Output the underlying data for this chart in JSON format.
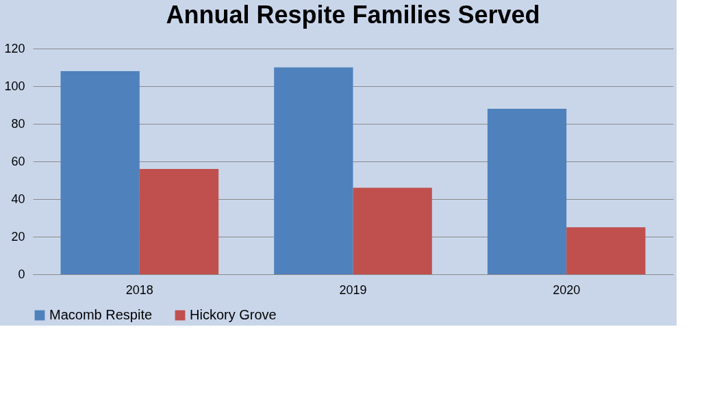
{
  "chart_data": {
    "type": "bar",
    "title": "Annual Respite Families Served",
    "categories": [
      "2018",
      "2019",
      "2020"
    ],
    "series": [
      {
        "name": "Macomb Respite",
        "color": "#4f81bd",
        "values": [
          108,
          110,
          88
        ]
      },
      {
        "name": "Hickory Grove",
        "color": "#c0504d",
        "values": [
          56,
          46,
          25
        ]
      }
    ],
    "ylim": [
      0,
      120
    ],
    "yticks": [
      0,
      20,
      40,
      60,
      80,
      100,
      120
    ],
    "grid": "y",
    "legend": "bottom"
  }
}
